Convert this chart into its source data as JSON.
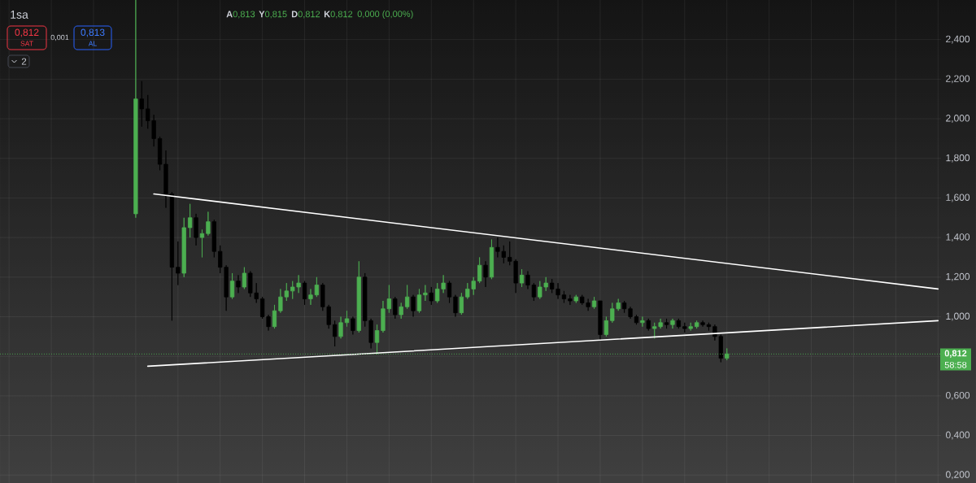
{
  "chart_data": {
    "type": "candlestick",
    "title": "1sa",
    "categories": [
      null,
      null,
      null,
      null,
      null,
      null,
      null,
      null,
      null,
      null,
      null,
      null,
      null,
      null,
      null,
      null,
      null,
      null,
      null,
      null,
      null,
      null,
      null,
      null,
      null,
      null,
      null,
      null,
      null,
      null,
      null,
      null,
      null,
      null,
      null,
      null,
      null,
      null,
      null,
      null,
      null,
      null,
      null,
      null,
      null,
      null,
      null,
      null,
      null,
      null,
      null,
      null,
      null,
      null,
      null,
      null,
      null,
      null,
      null,
      null,
      null,
      null,
      null,
      null,
      null,
      null,
      null,
      null,
      null,
      null,
      null,
      null,
      null,
      null,
      null,
      null,
      null,
      null,
      null,
      null,
      null,
      null,
      null,
      null,
      null,
      null,
      null,
      null,
      null,
      null,
      null,
      null,
      null,
      null,
      null,
      null,
      null,
      null,
      null,
      null,
      null,
      null,
      null,
      null,
      null,
      null,
      null,
      null,
      null,
      null,
      null,
      null,
      null,
      null,
      null,
      null,
      null,
      null,
      null,
      null,
      null,
      null,
      null,
      null,
      null,
      null,
      null,
      null,
      null,
      null,
      null,
      null,
      null,
      null,
      null,
      null,
      null,
      null,
      null,
      null,
      null,
      null,
      null,
      null,
      null,
      null,
      null,
      null,
      null,
      null,
      null,
      null,
      null,
      null,
      null,
      null
    ],
    "ohlc": [
      null,
      null,
      null,
      null,
      null,
      null,
      null,
      null,
      null,
      null,
      null,
      null,
      null,
      null,
      null,
      null,
      null,
      null,
      null,
      null,
      null,
      null,
      [
        1.52,
        2.6,
        1.5,
        2.1
      ],
      [
        2.1,
        2.19,
        1.96,
        2.05
      ],
      [
        2.05,
        2.12,
        1.95,
        1.99
      ],
      [
        1.99,
        2.02,
        1.86,
        1.9
      ],
      [
        1.9,
        1.91,
        1.74,
        1.77
      ],
      [
        1.77,
        1.84,
        1.55,
        1.62
      ],
      [
        1.62,
        1.63,
        0.98,
        1.25
      ],
      [
        1.25,
        1.38,
        1.16,
        1.22
      ],
      [
        1.22,
        1.5,
        1.2,
        1.45
      ],
      [
        1.45,
        1.57,
        1.4,
        1.5
      ],
      [
        1.5,
        1.52,
        1.36,
        1.4
      ],
      [
        1.4,
        1.44,
        1.3,
        1.42
      ],
      [
        1.42,
        1.53,
        1.41,
        1.48
      ],
      [
        1.48,
        1.49,
        1.3,
        1.33
      ],
      [
        1.33,
        1.36,
        1.22,
        1.25
      ],
      [
        1.25,
        1.26,
        1.03,
        1.1
      ],
      [
        1.1,
        1.22,
        1.09,
        1.18
      ],
      [
        1.18,
        1.21,
        1.12,
        1.15
      ],
      [
        1.15,
        1.25,
        1.14,
        1.22
      ],
      [
        1.22,
        1.23,
        1.1,
        1.12
      ],
      [
        1.12,
        1.17,
        1.07,
        1.09
      ],
      [
        1.09,
        1.1,
        0.99,
        1.0
      ],
      [
        1.0,
        1.01,
        0.93,
        0.95
      ],
      [
        0.95,
        1.06,
        0.94,
        1.03
      ],
      [
        1.03,
        1.14,
        1.02,
        1.1
      ],
      [
        1.1,
        1.17,
        1.08,
        1.13
      ],
      [
        1.13,
        1.18,
        1.09,
        1.15
      ],
      [
        1.15,
        1.21,
        1.12,
        1.17
      ],
      [
        1.17,
        1.18,
        1.06,
        1.09
      ],
      [
        1.09,
        1.14,
        1.06,
        1.11
      ],
      [
        1.11,
        1.2,
        1.1,
        1.16
      ],
      [
        1.16,
        1.17,
        1.03,
        1.05
      ],
      [
        1.05,
        1.06,
        0.94,
        0.96
      ],
      [
        0.96,
        0.98,
        0.85,
        0.9
      ],
      [
        0.9,
        1.0,
        0.89,
        0.97
      ],
      [
        0.97,
        1.03,
        0.95,
        0.99
      ],
      [
        0.99,
        1.0,
        0.91,
        0.93
      ],
      [
        0.93,
        1.28,
        0.92,
        1.2
      ],
      [
        1.2,
        1.22,
        0.95,
        0.98
      ],
      [
        0.98,
        0.99,
        0.84,
        0.87
      ],
      [
        0.87,
        0.96,
        0.81,
        0.93
      ],
      [
        0.93,
        1.08,
        0.92,
        1.04
      ],
      [
        1.04,
        1.16,
        1.02,
        1.09
      ],
      [
        1.09,
        1.1,
        0.99,
        1.01
      ],
      [
        1.01,
        1.07,
        0.99,
        1.05
      ],
      [
        1.05,
        1.16,
        1.04,
        1.1
      ],
      [
        1.1,
        1.11,
        1.0,
        1.03
      ],
      [
        1.03,
        1.14,
        1.02,
        1.11
      ],
      [
        1.11,
        1.16,
        1.08,
        1.12
      ],
      [
        1.12,
        1.15,
        1.06,
        1.08
      ],
      [
        1.08,
        1.17,
        1.07,
        1.14
      ],
      [
        1.14,
        1.21,
        1.12,
        1.17
      ],
      [
        1.17,
        1.18,
        1.07,
        1.1
      ],
      [
        1.1,
        1.11,
        1.0,
        1.02
      ],
      [
        1.02,
        1.12,
        1.01,
        1.1
      ],
      [
        1.1,
        1.17,
        1.09,
        1.14
      ],
      [
        1.14,
        1.2,
        1.11,
        1.18
      ],
      [
        1.18,
        1.3,
        1.17,
        1.26
      ],
      [
        1.26,
        1.28,
        1.15,
        1.2
      ],
      [
        1.2,
        1.39,
        1.19,
        1.35
      ],
      [
        1.35,
        1.4,
        1.3,
        1.33
      ],
      [
        1.33,
        1.36,
        1.27,
        1.3
      ],
      [
        1.3,
        1.38,
        1.26,
        1.28
      ],
      [
        1.28,
        1.29,
        1.12,
        1.17
      ],
      [
        1.17,
        1.24,
        1.15,
        1.21
      ],
      [
        1.21,
        1.23,
        1.14,
        1.16
      ],
      [
        1.16,
        1.17,
        1.08,
        1.1
      ],
      [
        1.1,
        1.18,
        1.09,
        1.15
      ],
      [
        1.15,
        1.2,
        1.13,
        1.17
      ],
      [
        1.17,
        1.19,
        1.12,
        1.14
      ],
      [
        1.14,
        1.17,
        1.09,
        1.11
      ],
      [
        1.11,
        1.13,
        1.07,
        1.09
      ],
      [
        1.09,
        1.11,
        1.06,
        1.08
      ],
      [
        1.08,
        1.11,
        1.07,
        1.1
      ],
      [
        1.1,
        1.11,
        1.06,
        1.07
      ],
      [
        1.07,
        1.09,
        1.03,
        1.05
      ],
      [
        1.05,
        1.1,
        1.04,
        1.08
      ],
      [
        1.08,
        1.08,
        0.88,
        0.91
      ],
      [
        0.91,
        1.0,
        0.9,
        0.98
      ],
      [
        0.98,
        1.07,
        0.97,
        1.04
      ],
      [
        1.04,
        1.09,
        1.03,
        1.07
      ],
      [
        1.07,
        1.08,
        1.02,
        1.04
      ],
      [
        1.04,
        1.05,
        0.99,
        1.0
      ],
      [
        1.0,
        1.01,
        0.96,
        0.97
      ],
      [
        0.97,
        1.0,
        0.95,
        0.98
      ],
      [
        0.98,
        0.99,
        0.93,
        0.94
      ],
      [
        0.94,
        0.97,
        0.89,
        0.95
      ],
      [
        0.95,
        0.99,
        0.94,
        0.97
      ],
      [
        0.97,
        0.99,
        0.94,
        0.96
      ],
      [
        0.96,
        0.99,
        0.94,
        0.98
      ],
      [
        0.98,
        0.99,
        0.94,
        0.95
      ],
      [
        0.95,
        0.97,
        0.92,
        0.94
      ],
      [
        0.94,
        0.97,
        0.93,
        0.95
      ],
      [
        0.95,
        0.98,
        0.94,
        0.97
      ],
      [
        0.97,
        0.98,
        0.95,
        0.96
      ],
      [
        0.96,
        0.97,
        0.93,
        0.95
      ],
      [
        0.95,
        0.96,
        0.88,
        0.9
      ],
      [
        0.9,
        0.91,
        0.77,
        0.79
      ],
      [
        0.79,
        0.84,
        0.78,
        0.812
      ],
      null,
      null,
      null,
      null,
      null,
      null,
      null,
      null,
      null,
      null,
      null,
      null,
      null,
      null,
      null,
      null,
      null,
      null,
      null,
      null,
      null,
      null,
      null,
      null,
      null,
      null,
      null,
      null,
      null,
      null,
      null,
      null,
      null,
      null,
      null
    ],
    "colors": [
      null,
      null,
      null,
      null,
      null,
      null,
      null,
      null,
      null,
      null,
      null,
      null,
      null,
      null,
      null,
      null,
      null,
      null,
      null,
      null,
      null,
      null,
      "#4caf50",
      "#000000",
      "#000000",
      "#000000",
      "#000000",
      "#000000",
      "#000000",
      "#000000",
      "#4caf50",
      "#4caf50",
      "#000000",
      "#4caf50",
      "#4caf50",
      "#000000",
      "#000000",
      "#000000",
      "#4caf50",
      "#000000",
      "#4caf50",
      "#000000",
      "#000000",
      "#000000",
      "#000000",
      "#4caf50",
      "#4caf50",
      "#4caf50",
      "#4caf50",
      "#4caf50",
      "#000000",
      "#4caf50",
      "#4caf50",
      "#000000",
      "#000000",
      "#000000",
      "#4caf50",
      "#4caf50",
      "#000000",
      "#4caf50",
      "#000000",
      "#000000",
      "#4caf50",
      "#4caf50",
      "#4caf50",
      "#000000",
      "#4caf50",
      "#4caf50",
      "#000000",
      "#4caf50",
      "#4caf50",
      "#000000",
      "#4caf50",
      "#4caf50",
      "#000000",
      "#000000",
      "#4caf50",
      "#4caf50",
      "#4caf50",
      "#4caf50",
      "#000000",
      "#4caf50",
      "#000000",
      "#000000",
      "#000000",
      "#000000",
      "#4caf50",
      "#000000",
      "#000000",
      "#4caf50",
      "#4caf50",
      "#000000",
      "#000000",
      "#000000",
      "#000000",
      "#4caf50",
      "#000000",
      "#000000",
      "#4caf50",
      "#000000",
      "#4caf50",
      "#4caf50",
      "#4caf50",
      "#000000",
      "#000000",
      "#000000",
      "#4caf50",
      "#000000",
      "#4caf50",
      "#4caf50",
      "#000000",
      "#4caf50",
      "#000000",
      "#000000",
      "#4caf50",
      "#4caf50",
      "#000000",
      "#000000",
      "#000000",
      "#000000",
      "#4caf50",
      null,
      null,
      null,
      null,
      null,
      null,
      null,
      null,
      null,
      null,
      null,
      null,
      null,
      null,
      null,
      null,
      null,
      null,
      null,
      null,
      null,
      null,
      null,
      null,
      null,
      null,
      null,
      null,
      null,
      null,
      null,
      null,
      null,
      null,
      null
    ],
    "series": [
      {
        "type": "line",
        "color": "#ffffff",
        "values": [
          null,
          null,
          null,
          null,
          null,
          null,
          null,
          null,
          null,
          null,
          null,
          null,
          null,
          null,
          null,
          null,
          null,
          null,
          null,
          null,
          null,
          null,
          null,
          null,
          null,
          1.62,
          null,
          null,
          null,
          null,
          null,
          null,
          null,
          null,
          null,
          null,
          null,
          null,
          null,
          null,
          null,
          null,
          null,
          null,
          null,
          null,
          null,
          null,
          null,
          null,
          null,
          null,
          null,
          null,
          null,
          null,
          null,
          null,
          null,
          null,
          null,
          null,
          null,
          null,
          null,
          null,
          null,
          null,
          null,
          null,
          null,
          null,
          null,
          null,
          null,
          null,
          null,
          null,
          null,
          null,
          null,
          null,
          null,
          null,
          null,
          null,
          null,
          null,
          null,
          null,
          null,
          null,
          null,
          null,
          null,
          null,
          null,
          null,
          null,
          null,
          null,
          null,
          null,
          null,
          null,
          null,
          null,
          null,
          null,
          null,
          null,
          null,
          null,
          null,
          null,
          null,
          null,
          null,
          null,
          null,
          null,
          null,
          null,
          null,
          null,
          null,
          null,
          null,
          null,
          null,
          null,
          null,
          null,
          null,
          null,
          null,
          null,
          null,
          null,
          null,
          null,
          null,
          null,
          null,
          null,
          null,
          null,
          null,
          null,
          null,
          null,
          null,
          null,
          null,
          null,
          1.14
        ]
      },
      {
        "type": "line",
        "color": "#ffffff",
        "values": [
          null,
          null,
          null,
          null,
          null,
          null,
          null,
          null,
          null,
          null,
          null,
          null,
          null,
          null,
          null,
          null,
          null,
          null,
          null,
          null,
          null,
          null,
          null,
          null,
          0.75,
          null,
          null,
          null,
          null,
          null,
          null,
          null,
          null,
          null,
          null,
          null,
          null,
          null,
          null,
          null,
          null,
          null,
          null,
          null,
          null,
          null,
          null,
          null,
          null,
          null,
          null,
          null,
          null,
          null,
          null,
          null,
          null,
          null,
          null,
          null,
          null,
          null,
          null,
          null,
          null,
          null,
          null,
          null,
          null,
          null,
          null,
          null,
          null,
          null,
          null,
          null,
          null,
          null,
          null,
          null,
          null,
          null,
          null,
          null,
          null,
          null,
          null,
          null,
          null,
          null,
          null,
          null,
          null,
          null,
          null,
          null,
          null,
          null,
          null,
          null,
          null,
          null,
          null,
          null,
          null,
          null,
          null,
          null,
          null,
          null,
          null,
          null,
          null,
          null,
          null,
          null,
          null,
          null,
          null,
          null,
          null,
          null,
          null,
          null,
          null,
          null,
          null,
          null,
          null,
          null,
          null,
          null,
          null,
          null,
          null,
          null,
          null,
          null,
          null,
          null,
          null,
          null,
          null,
          null,
          null,
          null,
          null,
          null,
          null,
          null,
          null,
          null,
          null,
          null,
          null,
          0.98
        ]
      }
    ],
    "ylim": [
      0.16,
      2.6
    ],
    "yticks": [
      {
        "value": 0.2,
        "label": "0,200"
      },
      {
        "value": 0.4,
        "label": "0,400"
      },
      {
        "value": 0.6,
        "label": "0,600"
      },
      {
        "value": 0.8,
        "label": null
      },
      {
        "value": 1.0,
        "label": "1,000"
      },
      {
        "value": 1.2,
        "label": "1,200"
      },
      {
        "value": 1.4,
        "label": "1,400"
      },
      {
        "value": 1.6,
        "label": "1,600"
      },
      {
        "value": 1.8,
        "label": "1,800"
      },
      {
        "value": 2.0,
        "label": "2,000"
      },
      {
        "value": 2.2,
        "label": "2,200"
      },
      {
        "value": 2.4,
        "label": "2,400"
      }
    ],
    "grid": true,
    "tick_labels": "y",
    "ref_lines": [
      {
        "axis": "y",
        "value": 0.812,
        "label": "0,812",
        "color": "#4caf50",
        "line_style": "dotted"
      }
    ],
    "annotations": [
      "**A**0,813",
      "**Y**0,815",
      "**D**0,812",
      "**K**0,812",
      "0,000 (0,00%)",
      "0,812",
      "SAT",
      "0,001",
      "0,813",
      "AL",
      "2",
      "58:58"
    ]
  }
}
